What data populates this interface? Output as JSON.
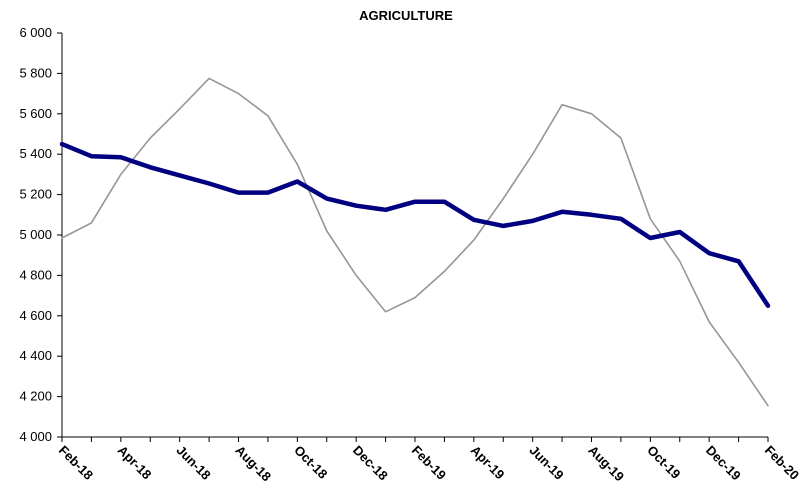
{
  "chart_data": {
    "type": "line",
    "title": "AGRICULTURE",
    "xlabel": "",
    "ylabel": "",
    "ylim": [
      4000,
      6000
    ],
    "y_ticks": [
      4000,
      4200,
      4400,
      4600,
      4800,
      5000,
      5200,
      5400,
      5600,
      5800,
      6000
    ],
    "y_tick_labels": [
      "4 000",
      "4 200",
      "4 400",
      "4 600",
      "4 800",
      "5 000",
      "5 200",
      "5 400",
      "5 600",
      "5 800",
      "6 000"
    ],
    "x": [
      "Feb-18",
      "Mar-18",
      "Apr-18",
      "May-18",
      "Jun-18",
      "Jul-18",
      "Aug-18",
      "Sep-18",
      "Oct-18",
      "Nov-18",
      "Dec-18",
      "Jan-19",
      "Feb-19",
      "Mar-19",
      "Apr-19",
      "May-19",
      "Jun-19",
      "Jul-19",
      "Aug-19",
      "Sep-19",
      "Oct-19",
      "Nov-19",
      "Dec-19",
      "Jan-20",
      "Feb-20"
    ],
    "x_tick_labels": [
      "Feb-18",
      "Apr-18",
      "Jun-18",
      "Aug-18",
      "Oct-18",
      "Dec-18",
      "Feb-19",
      "Apr-19",
      "Jun-19",
      "Aug-19",
      "Oct-19",
      "Dec-19",
      "Feb-20"
    ],
    "grid": false,
    "legend": "none",
    "series": [
      {
        "color": "#000080",
        "values": [
          5450,
          5390,
          5385,
          5335,
          5295,
          5255,
          5210,
          5210,
          5265,
          5180,
          5145,
          5125,
          5165,
          5165,
          5075,
          5045,
          5070,
          5115,
          5100,
          5080,
          4985,
          5015,
          4910,
          4870,
          4650
        ]
      },
      {
        "color": "#969696",
        "values": [
          4985,
          5060,
          5300,
          5480,
          5625,
          5775,
          5700,
          5590,
          5350,
          5020,
          4800,
          4620,
          4690,
          4820,
          4975,
          5180,
          5400,
          5645,
          5600,
          5480,
          5080,
          4870,
          4570,
          4370,
          4155
        ]
      }
    ]
  }
}
